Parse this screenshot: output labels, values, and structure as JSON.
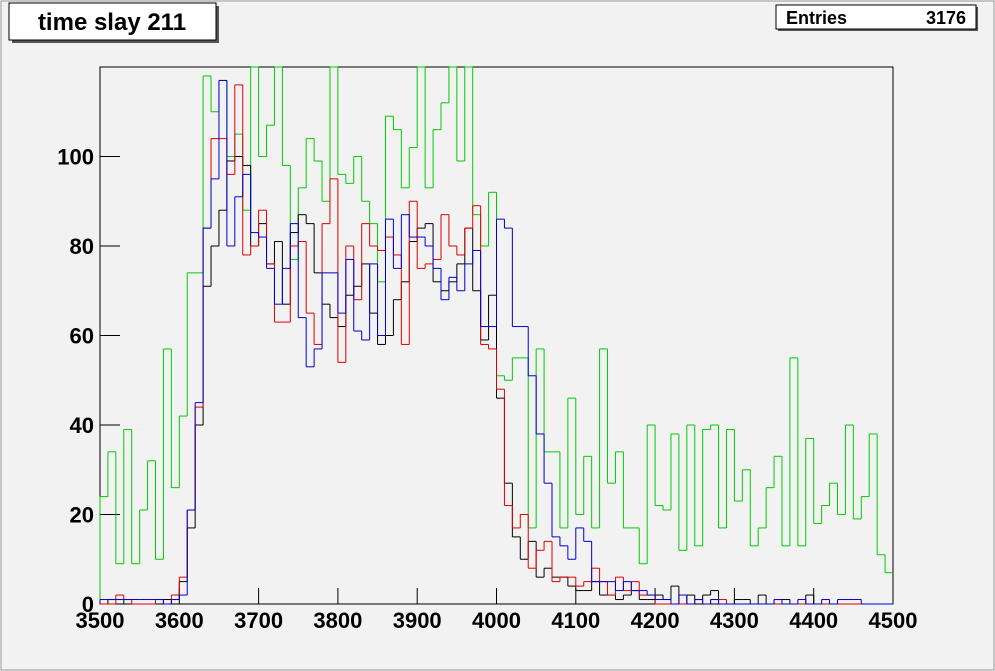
{
  "chart_data": {
    "type": "histogram",
    "title": "time slay 211",
    "stats": {
      "label": "Entries",
      "value": 3176
    },
    "bins": [
      3500,
      3510,
      3520,
      3530,
      3540,
      3550,
      3560,
      3570,
      3580,
      3590,
      3600,
      3610,
      3620,
      3630,
      3640,
      3650,
      3660,
      3670,
      3680,
      3690,
      3700,
      3710,
      3720,
      3730,
      3740,
      3750,
      3760,
      3770,
      3780,
      3790,
      3800,
      3810,
      3820,
      3830,
      3840,
      3850,
      3860,
      3870,
      3880,
      3890,
      3900,
      3910,
      3920,
      3930,
      3940,
      3950,
      3960,
      3970,
      3980,
      3990,
      4000,
      4010,
      4020,
      4030,
      4040,
      4050,
      4060,
      4070,
      4080,
      4090,
      4100,
      4110,
      4120,
      4130,
      4140,
      4150,
      4160,
      4170,
      4180,
      4190,
      4200,
      4210,
      4220,
      4230,
      4240,
      4250,
      4260,
      4270,
      4280,
      4290,
      4300,
      4310,
      4320,
      4330,
      4340,
      4350,
      4360,
      4370,
      4380,
      4390,
      4400,
      4410,
      4420,
      4430,
      4440,
      4450,
      4460,
      4470,
      4480,
      4490,
      4500
    ],
    "series": [
      {
        "color": "#00cc00",
        "values": [
          24,
          34,
          9,
          39,
          9,
          21,
          32,
          10,
          57,
          26,
          42,
          74,
          74,
          118,
          110,
          117,
          100,
          105,
          88,
          120,
          100,
          107,
          120,
          98,
          77,
          93,
          104,
          99,
          90,
          120,
          96,
          94,
          100,
          90,
          85,
          72,
          109,
          106,
          93,
          102,
          120,
          93,
          106,
          112,
          120,
          99,
          120,
          87,
          80,
          92,
          51,
          50,
          55,
          55,
          17,
          57,
          34,
          34,
          17,
          46,
          20,
          33,
          17,
          57,
          27,
          34,
          17,
          17,
          9,
          40,
          22,
          21,
          38,
          12,
          40,
          13,
          39,
          40,
          17,
          39,
          23,
          30,
          13,
          17,
          26,
          33,
          13,
          55,
          13,
          37,
          18,
          22,
          27,
          20,
          40,
          19,
          24,
          38,
          11,
          7
        ]
      },
      {
        "color": "#000000",
        "values": [
          0,
          1,
          1,
          0,
          0,
          0,
          0,
          0,
          1,
          1,
          5,
          17,
          40,
          71,
          80,
          88,
          99,
          100,
          98,
          80,
          85,
          76,
          81,
          67,
          83,
          87,
          85,
          74,
          67,
          64,
          62,
          69,
          71,
          76,
          65,
          58,
          60,
          68,
          72,
          81,
          84,
          85,
          72,
          70,
          72,
          76,
          84,
          70,
          59,
          69,
          46,
          27,
          15,
          10,
          14,
          6,
          8,
          6,
          6,
          4,
          3,
          3,
          5,
          2,
          2,
          1,
          2,
          3,
          1,
          1,
          2,
          1,
          4,
          0,
          2,
          1,
          2,
          3,
          0,
          0,
          1,
          1,
          0,
          2,
          0,
          1,
          1,
          0,
          0,
          2,
          0,
          0,
          0,
          0,
          0,
          0,
          0,
          0,
          0,
          0
        ]
      },
      {
        "color": "#dd0000",
        "values": [
          0,
          0,
          2,
          1,
          0,
          0,
          0,
          1,
          0,
          2,
          6,
          21,
          44,
          84,
          104,
          104,
          96,
          116,
          78,
          80,
          88,
          76,
          63,
          63,
          80,
          81,
          65,
          58,
          85,
          95,
          54,
          80,
          68,
          85,
          80,
          79,
          82,
          78,
          58,
          90,
          75,
          76,
          77,
          87,
          80,
          78,
          84,
          89,
          58,
          57,
          48,
          22,
          17,
          20,
          8,
          12,
          14,
          5,
          6,
          6,
          4,
          5,
          8,
          5,
          2,
          6,
          3,
          5,
          2,
          2,
          0,
          0,
          0,
          0,
          0,
          1,
          0,
          1,
          1,
          0,
          0,
          0,
          0,
          0,
          0,
          0,
          0,
          0,
          0,
          0,
          0,
          0,
          0,
          0,
          0,
          0,
          0,
          0,
          0,
          0
        ]
      },
      {
        "color": "#0000cc",
        "values": [
          1,
          1,
          1,
          1,
          1,
          1,
          1,
          1,
          0,
          1,
          2,
          21,
          45,
          84,
          95,
          117,
          80,
          91,
          96,
          83,
          82,
          75,
          67,
          75,
          85,
          64,
          53,
          57,
          74,
          74,
          65,
          77,
          61,
          59,
          76,
          60,
          86,
          75,
          87,
          82,
          82,
          80,
          75,
          68,
          73,
          70,
          76,
          79,
          62,
          62,
          86,
          84,
          62,
          62,
          51,
          38,
          27,
          15,
          13,
          10,
          17,
          14,
          5,
          5,
          5,
          3,
          5,
          3,
          3,
          2,
          1,
          1,
          0,
          2,
          0,
          1,
          0,
          1,
          0,
          0,
          0,
          0,
          0,
          0,
          0,
          1,
          0,
          0,
          1,
          0,
          0,
          1,
          0,
          1,
          1,
          1,
          0,
          0,
          0,
          0
        ]
      }
    ],
    "xlim": [
      3500,
      4500
    ],
    "ylim": [
      0,
      120
    ],
    "xticks": [
      3500,
      3600,
      3700,
      3800,
      3900,
      4000,
      4100,
      4200,
      4300,
      4400,
      4500
    ],
    "yticks": [
      0,
      20,
      40,
      60,
      80,
      100
    ]
  }
}
